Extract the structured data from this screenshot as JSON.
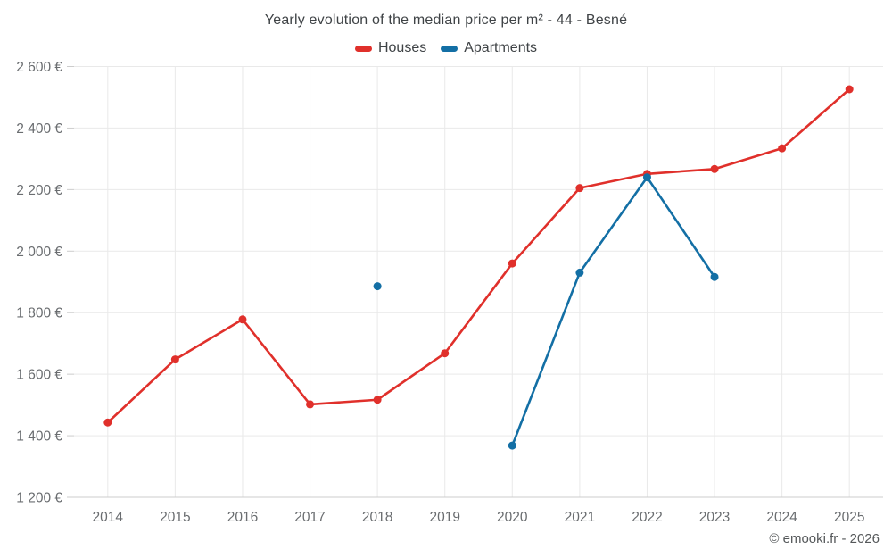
{
  "header": {
    "title": "Yearly evolution of the median price per m² - 44 - Besné"
  },
  "legend": {
    "items": [
      {
        "label": "Houses",
        "color": "#e0302b"
      },
      {
        "label": "Apartments",
        "color": "#136fa5"
      }
    ]
  },
  "footer": {
    "credit": "© emooki.fr - 2026"
  },
  "colors": {
    "houses": "#e0302b",
    "apartments": "#136fa5",
    "grid": "#e9e9e9",
    "axis_line": "#cccccc",
    "tick": "#cccccc",
    "axis_text": "#6a6d70"
  },
  "chart_data": {
    "type": "line",
    "title": "Yearly evolution of the median price per m² - 44 - Besné",
    "categories": [
      2014,
      2015,
      2016,
      2017,
      2018,
      2019,
      2020,
      2021,
      2022,
      2023,
      2024,
      2025
    ],
    "series": [
      {
        "name": "Houses",
        "color": "#e0302b",
        "values": [
          1443,
          1648,
          1778,
          1502,
          1517,
          1668,
          1960,
          2205,
          2251,
          2267,
          2334,
          2526
        ]
      },
      {
        "name": "Apartments",
        "color": "#136fa5",
        "values": [
          null,
          null,
          null,
          null,
          1886,
          null,
          1368,
          1930,
          2240,
          1916,
          null,
          null
        ]
      }
    ],
    "xlabel": "",
    "ylabel": "",
    "ylim": [
      1200,
      2600
    ],
    "y_tick_step": 200,
    "y_tick_suffix": " €",
    "grid": true,
    "legend_position": "top",
    "annotations": [
      "© emooki.fr - 2026"
    ]
  }
}
